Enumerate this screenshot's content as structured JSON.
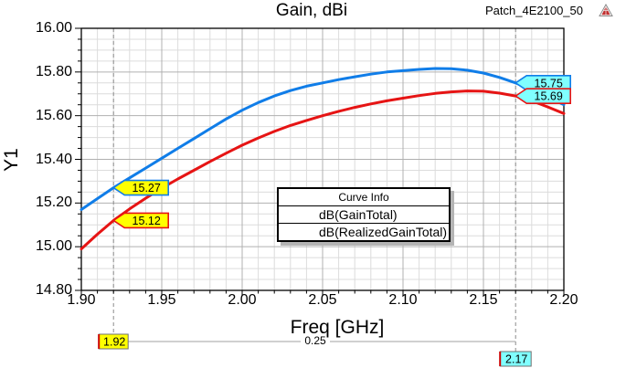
{
  "window": {
    "title": "Gain, dBi",
    "design_label": "Patch_4E2100_50",
    "app_icon": "ansys-triangle-icon"
  },
  "chart_data": {
    "type": "line",
    "title": "Gain, dBi",
    "xlabel": "Freq [GHz]",
    "ylabel": "Y1",
    "xlim": [
      1.9,
      2.2
    ],
    "ylim": [
      14.8,
      16.0
    ],
    "x_ticks": [
      "1.90",
      "1.95",
      "2.00",
      "2.05",
      "2.10",
      "2.15",
      "2.20"
    ],
    "y_ticks": [
      "16.00",
      "15.80",
      "15.60",
      "15.40",
      "15.20",
      "15.00",
      "14.80"
    ],
    "x_minor_step": 0.01,
    "y_minor_step": 0.05,
    "x_major_step": 0.05,
    "y_major_step": 0.2,
    "grid": true,
    "legend": {
      "header": "Curve Info",
      "position": "lower-center"
    },
    "series": [
      {
        "name": "dB(GainTotal)",
        "color": "#107de8",
        "points": [
          [
            1.9,
            15.17
          ],
          [
            1.91,
            15.22
          ],
          [
            1.92,
            15.27
          ],
          [
            1.93,
            15.315
          ],
          [
            1.94,
            15.36
          ],
          [
            1.95,
            15.405
          ],
          [
            1.96,
            15.45
          ],
          [
            1.97,
            15.495
          ],
          [
            1.98,
            15.54
          ],
          [
            1.99,
            15.585
          ],
          [
            2.0,
            15.625
          ],
          [
            2.01,
            15.66
          ],
          [
            2.02,
            15.69
          ],
          [
            2.03,
            15.715
          ],
          [
            2.04,
            15.735
          ],
          [
            2.05,
            15.75
          ],
          [
            2.06,
            15.765
          ],
          [
            2.07,
            15.778
          ],
          [
            2.08,
            15.79
          ],
          [
            2.09,
            15.8
          ],
          [
            2.1,
            15.806
          ],
          [
            2.11,
            15.812
          ],
          [
            2.12,
            15.816
          ],
          [
            2.13,
            15.815
          ],
          [
            2.14,
            15.808
          ],
          [
            2.15,
            15.795
          ],
          [
            2.16,
            15.775
          ],
          [
            2.17,
            15.75
          ],
          [
            2.18,
            15.718
          ],
          [
            2.19,
            15.685
          ],
          [
            2.2,
            15.65
          ]
        ]
      },
      {
        "name": "dB(RealizedGainTotal)",
        "color": "#e61414",
        "points": [
          [
            1.9,
            14.99
          ],
          [
            1.91,
            15.057
          ],
          [
            1.92,
            15.12
          ],
          [
            1.93,
            15.173
          ],
          [
            1.94,
            15.222
          ],
          [
            1.95,
            15.268
          ],
          [
            1.96,
            15.31
          ],
          [
            1.97,
            15.35
          ],
          [
            1.98,
            15.39
          ],
          [
            1.99,
            15.428
          ],
          [
            2.0,
            15.465
          ],
          [
            2.01,
            15.498
          ],
          [
            2.02,
            15.528
          ],
          [
            2.03,
            15.555
          ],
          [
            2.04,
            15.578
          ],
          [
            2.05,
            15.6
          ],
          [
            2.06,
            15.62
          ],
          [
            2.07,
            15.638
          ],
          [
            2.08,
            15.654
          ],
          [
            2.09,
            15.668
          ],
          [
            2.1,
            15.68
          ],
          [
            2.11,
            15.692
          ],
          [
            2.12,
            15.702
          ],
          [
            2.13,
            15.709
          ],
          [
            2.14,
            15.713
          ],
          [
            2.15,
            15.712
          ],
          [
            2.16,
            15.703
          ],
          [
            2.17,
            15.69
          ],
          [
            2.18,
            15.668
          ],
          [
            2.19,
            15.64
          ],
          [
            2.2,
            15.61
          ]
        ]
      }
    ],
    "markers": [
      {
        "x": 1.92,
        "x_label": "1.92",
        "box_color": "#ffff00",
        "values": [
          {
            "series": 0,
            "y": 15.27,
            "label": "15.27"
          },
          {
            "series": 1,
            "y": 15.12,
            "label": "15.12"
          }
        ]
      },
      {
        "x": 2.17,
        "x_label": "2.17",
        "box_color": "#80ffff",
        "values": [
          {
            "series": 0,
            "y": 15.75,
            "label": "15.75"
          },
          {
            "series": 1,
            "y": 15.69,
            "label": "15.69"
          }
        ]
      }
    ],
    "delta_label": "0.25"
  },
  "colors": {
    "minor_grid": "#dcdcdc",
    "major_grid": "#b0b0b0",
    "axis": "#000000",
    "marker_line": "#8c8c8c",
    "delta_line": "#a0a0a0",
    "marker_edge_accent": "#cc0000",
    "box_border": "#707070"
  }
}
